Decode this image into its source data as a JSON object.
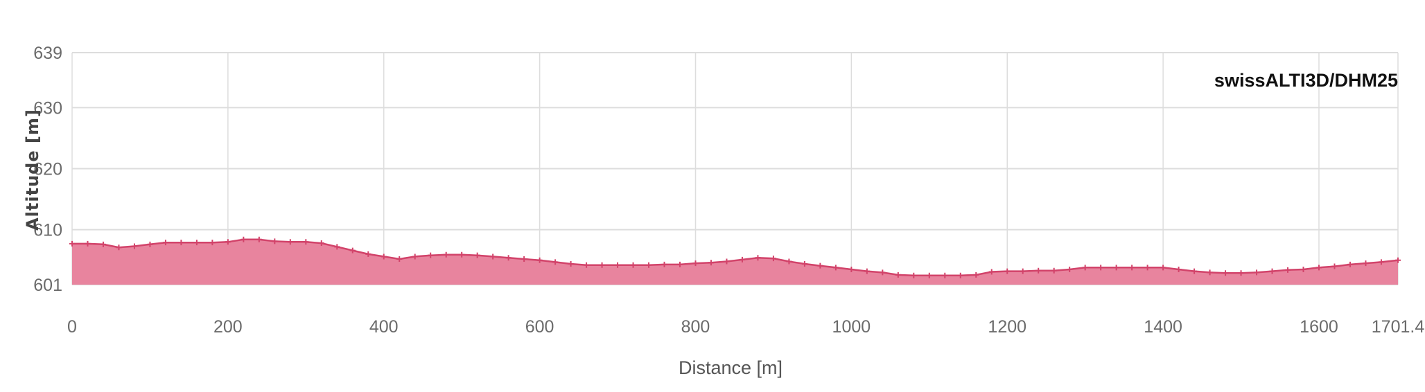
{
  "chart_data": {
    "type": "area",
    "title": "",
    "xlabel": "Distance [m]",
    "ylabel": "Altitude [m]",
    "legend": "swissALTI3D/DHM25",
    "legend_position": "top-right",
    "xlim": [
      0,
      1701.4
    ],
    "ylim": [
      601,
      639
    ],
    "x_ticks": [
      "0",
      "200",
      "400",
      "600",
      "800",
      "1000",
      "1200",
      "1400",
      "1600",
      "1701.4"
    ],
    "x_tick_values": [
      0,
      200,
      400,
      600,
      800,
      1000,
      1200,
      1400,
      1600,
      1701.4
    ],
    "y_ticks": [
      "601",
      "610",
      "620",
      "630",
      "639"
    ],
    "y_tick_values": [
      601,
      610,
      620,
      630,
      639
    ],
    "grid": true,
    "colors": {
      "fill": "#e8849e",
      "line": "#d2436a",
      "grid": "#dddddd"
    },
    "series": [
      {
        "x": [
          0,
          20,
          40,
          60,
          80,
          100,
          120,
          140,
          160,
          180,
          200,
          220,
          240,
          260,
          280,
          300,
          320,
          340,
          360,
          380,
          400,
          420,
          440,
          460,
          480,
          500,
          520,
          540,
          560,
          580,
          600,
          620,
          640,
          660,
          680,
          700,
          720,
          740,
          760,
          780,
          800,
          820,
          840,
          860,
          880,
          900,
          920,
          940,
          960,
          980,
          1000,
          1020,
          1040,
          1060,
          1080,
          1100,
          1120,
          1140,
          1160,
          1180,
          1200,
          1220,
          1240,
          1260,
          1280,
          1300,
          1320,
          1340,
          1360,
          1380,
          1400,
          1420,
          1440,
          1460,
          1480,
          1500,
          1520,
          1540,
          1560,
          1580,
          1600,
          1620,
          1640,
          1660,
          1680,
          1701.4
        ],
        "y": [
          607.7,
          607.7,
          607.6,
          607.1,
          607.3,
          607.6,
          607.9,
          607.9,
          607.9,
          607.9,
          608.0,
          608.4,
          608.4,
          608.1,
          608.0,
          608.0,
          607.8,
          607.2,
          606.6,
          606.0,
          605.6,
          605.2,
          605.6,
          605.8,
          605.9,
          605.9,
          605.8,
          605.6,
          605.4,
          605.2,
          605.0,
          604.7,
          604.4,
          604.2,
          604.2,
          604.2,
          604.2,
          604.2,
          604.3,
          604.3,
          604.5,
          604.6,
          604.8,
          605.1,
          605.4,
          605.3,
          604.8,
          604.4,
          604.1,
          603.8,
          603.5,
          603.2,
          603.0,
          602.6,
          602.5,
          602.5,
          602.5,
          602.5,
          602.6,
          603.1,
          603.2,
          603.2,
          603.3,
          603.3,
          603.5,
          603.8,
          603.8,
          603.8,
          603.8,
          603.8,
          603.8,
          603.5,
          603.2,
          603.0,
          602.9,
          602.9,
          603.0,
          603.2,
          603.4,
          603.5,
          603.8,
          604.0,
          604.3,
          604.5,
          604.7,
          605.0
        ]
      }
    ]
  }
}
